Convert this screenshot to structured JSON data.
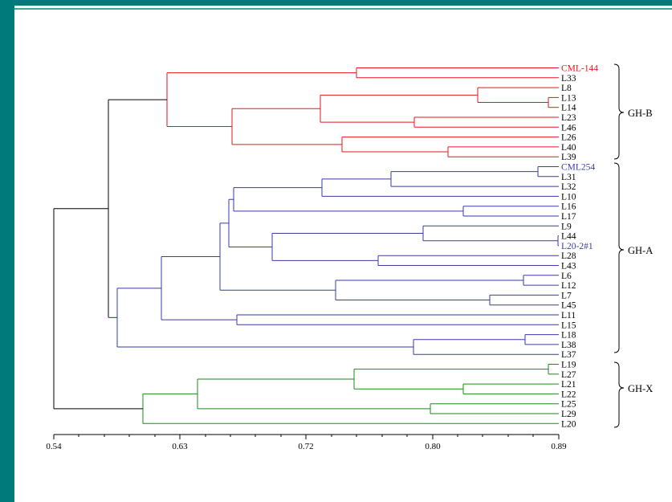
{
  "colors": {
    "frame": "#007a7a",
    "gh_b": "#e8141c",
    "gh_a": "#3a3aa8",
    "gh_x": "#1a8a1a",
    "root": "#000000"
  },
  "axis": {
    "ticks": [
      "0.54",
      "0.63",
      "0.72",
      "0.80",
      "0.89"
    ]
  },
  "groups": [
    {
      "label": "GH-B"
    },
    {
      "label": "GH-A"
    },
    {
      "label": "GH-X"
    }
  ],
  "leaves": [
    "CML-144",
    "L33",
    "L8",
    "L13",
    "L14",
    "L23",
    "L46",
    "L26",
    "L40",
    "L39",
    "CML254",
    "L31",
    "L32",
    "L10",
    "L16",
    "L17",
    "L9",
    "L44",
    "L20-2#1",
    "L28",
    "L43",
    "L6",
    "L12",
    "L7",
    "L45",
    "L11",
    "L15",
    "L18",
    "L38",
    "L37",
    "L19",
    "L27",
    "L21",
    "L22",
    "L25",
    "L29",
    "L20"
  ],
  "colored_leaves": {
    "CML-144": "gh_b",
    "CML254": "gh_a",
    "L20-2#1": "gh_a"
  }
}
